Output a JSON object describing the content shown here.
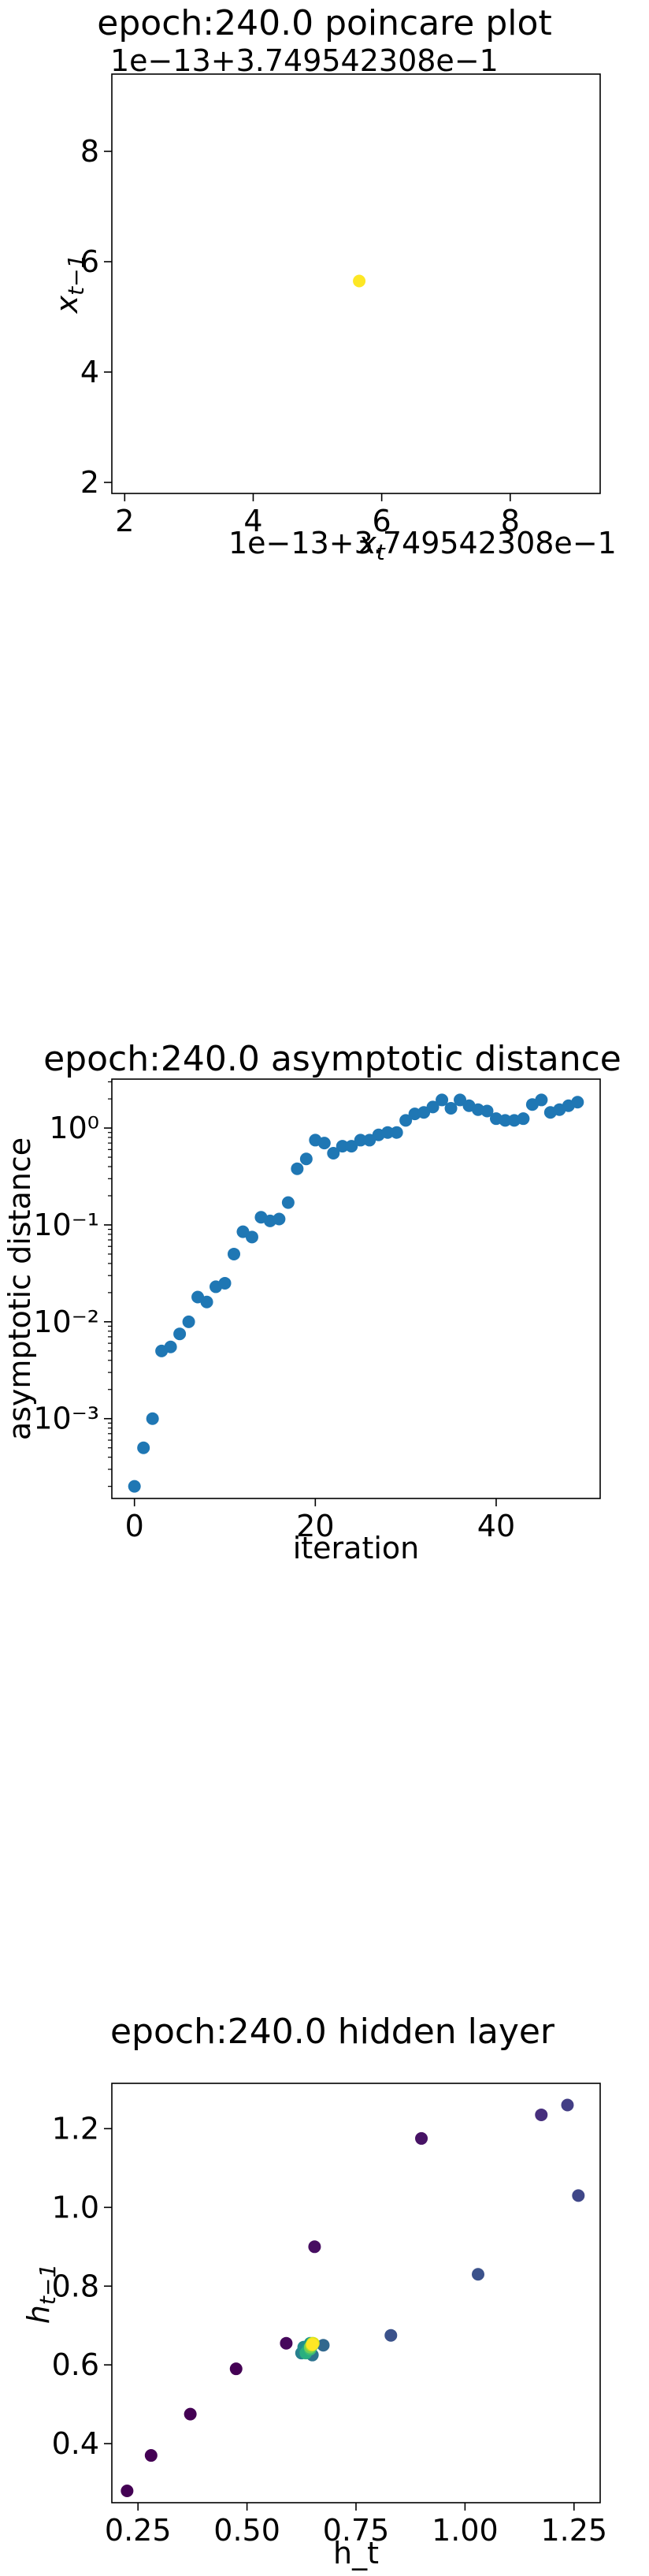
{
  "charts": [
    {
      "type": "scatter",
      "title": "epoch:240.0 poincare plot",
      "xlabel": "x_t",
      "ylabel": "x_{t-1}",
      "x_offset_text": "1e−13+3.749542308e−1",
      "y_offset_text": "1e−13+3.749542308e−1",
      "xlim": [
        1.8,
        9.4
      ],
      "ylim": [
        1.8,
        9.4
      ],
      "xticks": [
        2,
        4,
        6,
        8
      ],
      "yticks": [
        2,
        4,
        6,
        8
      ],
      "xtick_labels": [
        "2",
        "4",
        "6",
        "8"
      ],
      "ytick_labels": [
        "2",
        "4",
        "6",
        "8"
      ],
      "points": [
        {
          "x": 5.65,
          "y": 5.65,
          "color": "#fde725"
        }
      ]
    },
    {
      "type": "scatter",
      "title": "epoch:240.0 asymptotic distance",
      "xlabel": "iteration",
      "ylabel": "asymptotic distance",
      "yscale": "log",
      "xlim": [
        -2.5,
        51.5
      ],
      "ylim": [
        0.00015,
        3.2
      ],
      "xticks": [
        0,
        20,
        40
      ],
      "xtick_labels": [
        "0",
        "20",
        "40"
      ],
      "yticks": [
        0.001,
        0.01,
        0.1,
        1
      ],
      "ytick_labels": [
        "10⁻³",
        "10⁻²",
        "10⁻¹",
        "10⁰"
      ],
      "color": "#1f77b4",
      "x": [
        0,
        1,
        2,
        3,
        4,
        5,
        6,
        7,
        8,
        9,
        10,
        11,
        12,
        13,
        14,
        15,
        16,
        17,
        18,
        19,
        20,
        21,
        22,
        23,
        24,
        25,
        26,
        27,
        28,
        29,
        30,
        31,
        32,
        33,
        34,
        35,
        36,
        37,
        38,
        39,
        40,
        41,
        42,
        43,
        44,
        45,
        46,
        47,
        48,
        49
      ],
      "y": [
        0.0002,
        0.0005,
        0.001,
        0.005,
        0.0055,
        0.0075,
        0.01,
        0.018,
        0.016,
        0.023,
        0.025,
        0.05,
        0.085,
        0.075,
        0.12,
        0.11,
        0.115,
        0.17,
        0.38,
        0.48,
        0.75,
        0.7,
        0.55,
        0.65,
        0.65,
        0.75,
        0.75,
        0.85,
        0.9,
        0.9,
        1.2,
        1.4,
        1.45,
        1.65,
        1.95,
        1.6,
        1.95,
        1.7,
        1.55,
        1.5,
        1.25,
        1.2,
        1.2,
        1.25,
        1.75,
        1.95,
        1.45,
        1.55,
        1.7,
        1.85
      ]
    },
    {
      "type": "scatter",
      "title": "epoch:240.0 hidden layer",
      "xlabel": "h_t",
      "ylabel": "h_{t-1}",
      "xlim": [
        0.19,
        1.31
      ],
      "ylim": [
        0.25,
        1.315
      ],
      "xticks": [
        0.25,
        0.5,
        0.75,
        1.0,
        1.25
      ],
      "xtick_labels": [
        "0.25",
        "0.50",
        "0.75",
        "1.00",
        "1.25"
      ],
      "yticks": [
        0.4,
        0.6,
        0.8,
        1.0,
        1.2
      ],
      "ytick_labels": [
        "0.4",
        "0.6",
        "0.8",
        "1.0",
        "1.2"
      ],
      "colormap": "viridis",
      "points": [
        {
          "x": 0.225,
          "y": 0.28,
          "color": "#440154"
        },
        {
          "x": 0.28,
          "y": 0.37,
          "color": "#440154"
        },
        {
          "x": 0.37,
          "y": 0.475,
          "color": "#440154"
        },
        {
          "x": 0.475,
          "y": 0.59,
          "color": "#440154"
        },
        {
          "x": 0.59,
          "y": 0.655,
          "color": "#46085c"
        },
        {
          "x": 0.655,
          "y": 0.9,
          "color": "#470e61"
        },
        {
          "x": 0.9,
          "y": 1.175,
          "color": "#471365"
        },
        {
          "x": 1.175,
          "y": 1.235,
          "color": "#472f7d"
        },
        {
          "x": 1.235,
          "y": 1.26,
          "color": "#433e85"
        },
        {
          "x": 1.26,
          "y": 1.03,
          "color": "#3f4788"
        },
        {
          "x": 1.03,
          "y": 0.83,
          "color": "#3b528b"
        },
        {
          "x": 0.83,
          "y": 0.675,
          "color": "#3b528b"
        },
        {
          "x": 0.675,
          "y": 0.65,
          "color": "#31688e"
        },
        {
          "x": 0.65,
          "y": 0.625,
          "color": "#2c728e"
        },
        {
          "x": 0.625,
          "y": 0.63,
          "color": "#27808e"
        },
        {
          "x": 0.63,
          "y": 0.645,
          "color": "#228c8d"
        },
        {
          "x": 0.645,
          "y": 0.655,
          "color": "#1f968b"
        },
        {
          "x": 0.64,
          "y": 0.64,
          "color": "#20a386"
        },
        {
          "x": 0.635,
          "y": 0.63,
          "color": "#29af7f"
        },
        {
          "x": 0.645,
          "y": 0.64,
          "color": "#3dbc74"
        },
        {
          "x": 0.65,
          "y": 0.65,
          "color": "#56c667"
        },
        {
          "x": 0.645,
          "y": 0.645,
          "color": "#75d054"
        },
        {
          "x": 0.65,
          "y": 0.655,
          "color": "#95d840"
        },
        {
          "x": 0.648,
          "y": 0.65,
          "color": "#bade28"
        },
        {
          "x": 0.652,
          "y": 0.655,
          "color": "#dde318"
        },
        {
          "x": 0.65,
          "y": 0.652,
          "color": "#fde725"
        }
      ]
    }
  ]
}
